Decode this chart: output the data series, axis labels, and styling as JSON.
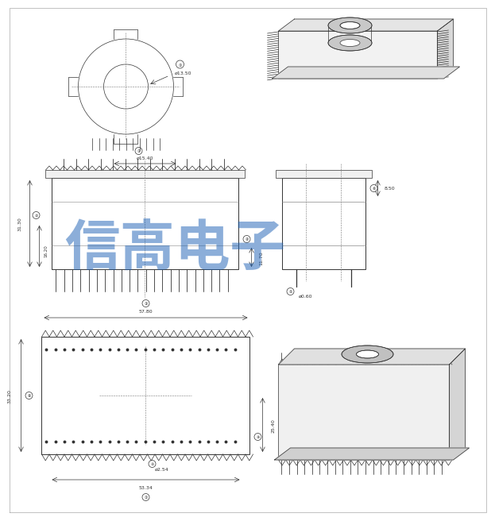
{
  "bg_color": "#ffffff",
  "line_color": "#333333",
  "watermark_color": "#1a5fb4",
  "watermark_text": "信高电子",
  "watermark_alpha": 0.5,
  "dimensions": {
    "phi_13_50": "ø13.50",
    "phi_15_40": "ø15.40",
    "phi_0_60": "ø0.60",
    "phi_2_54": "ø2.54",
    "dim_57_80": "57.80",
    "dim_53_34": "53.34",
    "dim_33_20": "33.20",
    "dim_25_40": "25.40",
    "dim_31_30": "31.30",
    "dim_16_20": "16.20",
    "dim_11_70": "11.70",
    "dim_8_50": "8.50"
  }
}
